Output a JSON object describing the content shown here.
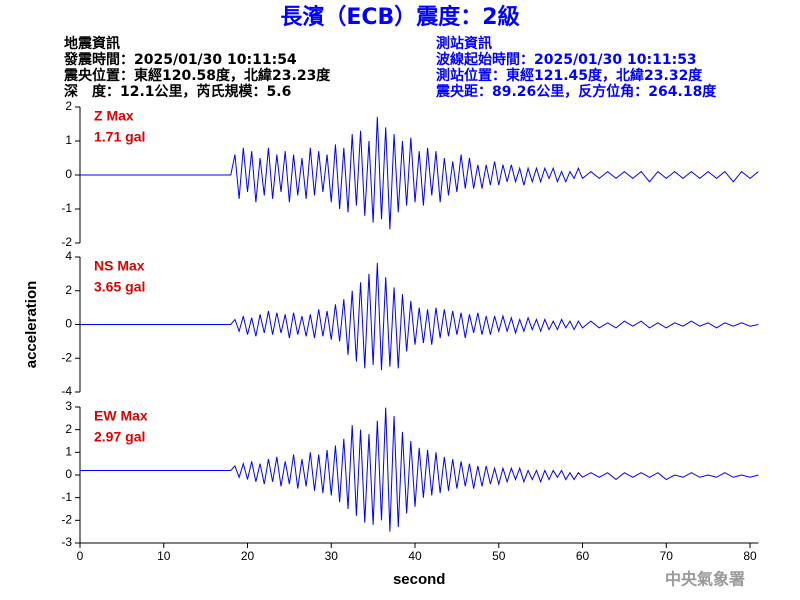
{
  "header": {
    "title": "長濱（ECB）震度：2級",
    "left": [
      "地震資訊",
      "發震時間：2025/01/30 10:11:54",
      "震央位置：東經120.58度，北緯23.23度",
      "深　度：12.1公里，芮氏規模：5.6"
    ],
    "right": [
      "測站資訊",
      "波線起始時間：2025/01/30 10:11:53",
      "測站位置：東經121.45度，北緯23.32度",
      "震央距：89.26公里，反方位角：264.18度"
    ]
  },
  "footer": "中央氣象署",
  "chart_data": [
    {
      "type": "line",
      "title": "Z Max",
      "subtitle": "1.71 gal",
      "color": "#0000ff",
      "xlim": [
        0,
        81
      ],
      "ylim": [
        -2,
        2
      ],
      "yticks": [
        -2,
        -1,
        0,
        1,
        2
      ],
      "x": [
        0,
        18,
        18.5,
        19,
        19.5,
        20,
        20.5,
        21,
        21.5,
        22,
        22.5,
        23,
        23.5,
        24,
        24.5,
        25,
        25.5,
        26,
        26.5,
        27,
        27.5,
        28,
        28.5,
        29,
        29.5,
        30,
        30.5,
        31,
        31.5,
        32,
        32.5,
        33,
        33.5,
        34,
        34.5,
        35,
        35.5,
        36,
        36.5,
        37,
        37.5,
        38,
        38.5,
        39,
        39.5,
        40,
        40.5,
        41,
        41.5,
        42,
        42.5,
        43,
        43.5,
        44,
        44.5,
        45,
        45.5,
        46,
        46.5,
        47,
        47.5,
        48,
        48.5,
        49,
        49.5,
        50,
        50.5,
        51,
        51.5,
        52,
        52.5,
        53,
        53.5,
        54,
        54.5,
        55,
        55.5,
        56,
        56.5,
        57,
        57.5,
        58,
        58.5,
        59,
        59.5,
        60,
        61,
        62,
        63,
        64,
        65,
        66,
        67,
        68,
        69,
        70,
        71,
        72,
        73,
        74,
        75,
        76,
        77,
        78,
        79,
        80,
        81
      ],
      "values": [
        0,
        0,
        0.6,
        -0.7,
        0.8,
        -0.5,
        0.7,
        -0.8,
        0.5,
        -0.6,
        0.8,
        -0.7,
        0.6,
        -0.5,
        0.7,
        -0.8,
        0.6,
        -0.6,
        0.5,
        -0.7,
        0.8,
        -0.6,
        0.7,
        -0.5,
        0.6,
        -0.8,
        0.9,
        -1.0,
        0.8,
        -1.1,
        1.2,
        -0.9,
        1.3,
        -1.2,
        1.0,
        -1.4,
        1.71,
        -1.3,
        1.4,
        -1.6,
        1.2,
        -1.1,
        1.0,
        -0.9,
        1.1,
        -0.8,
        0.7,
        -0.9,
        0.8,
        -0.6,
        0.7,
        -0.8,
        0.5,
        -0.6,
        0.4,
        -0.5,
        0.6,
        -0.4,
        0.5,
        -0.4,
        0.3,
        -0.4,
        0.3,
        -0.3,
        0.4,
        -0.3,
        0.3,
        -0.2,
        0.3,
        -0.2,
        0.2,
        -0.3,
        0.2,
        -0.2,
        0.2,
        -0.2,
        0.2,
        -0.1,
        0.2,
        -0.2,
        0.1,
        -0.2,
        0.1,
        -0.1,
        0.2,
        -0.1,
        0.1,
        -0.1,
        0.1,
        -0.1,
        0.1,
        -0.1,
        0.1,
        -0.2,
        0.1,
        -0.1,
        0.1,
        -0.1,
        0.1,
        -0.1,
        0.1,
        -0.1,
        0.1,
        -0.2,
        0.1,
        -0.1,
        0.1
      ]
    },
    {
      "type": "line",
      "title": "NS Max",
      "subtitle": "3.65 gal",
      "color": "#0000ff",
      "ylabel": "acceleration",
      "xlim": [
        0,
        81
      ],
      "ylim": [
        -4,
        4
      ],
      "yticks": [
        -4,
        -2,
        0,
        2,
        4
      ],
      "x": [
        0,
        18,
        18.5,
        19,
        19.5,
        20,
        20.5,
        21,
        21.5,
        22,
        22.5,
        23,
        23.5,
        24,
        24.5,
        25,
        25.5,
        26,
        26.5,
        27,
        27.5,
        28,
        28.5,
        29,
        29.5,
        30,
        30.5,
        31,
        31.5,
        32,
        32.5,
        33,
        33.5,
        34,
        34.5,
        35,
        35.5,
        36,
        36.5,
        37,
        37.5,
        38,
        38.5,
        39,
        39.5,
        40,
        40.5,
        41,
        41.5,
        42,
        42.5,
        43,
        43.5,
        44,
        44.5,
        45,
        45.5,
        46,
        46.5,
        47,
        47.5,
        48,
        48.5,
        49,
        49.5,
        50,
        50.5,
        51,
        51.5,
        52,
        52.5,
        53,
        53.5,
        54,
        54.5,
        55,
        55.5,
        56,
        56.5,
        57,
        57.5,
        58,
        58.5,
        59,
        59.5,
        60,
        61,
        62,
        63,
        64,
        65,
        66,
        67,
        68,
        69,
        70,
        71,
        72,
        73,
        74,
        75,
        76,
        77,
        78,
        79,
        80,
        81
      ],
      "values": [
        0,
        0,
        0.3,
        -0.4,
        0.5,
        -0.6,
        0.4,
        -0.7,
        0.6,
        -0.5,
        0.8,
        -0.6,
        0.7,
        -0.5,
        0.6,
        -0.8,
        0.7,
        -0.6,
        0.5,
        -0.7,
        0.6,
        -0.8,
        0.9,
        -0.7,
        0.8,
        -0.9,
        1.2,
        -1.0,
        1.5,
        -1.8,
        2.0,
        -2.2,
        2.5,
        -2.6,
        3.0,
        -2.4,
        3.65,
        -2.7,
        2.8,
        -2.5,
        2.2,
        -2.6,
        1.8,
        -1.6,
        1.4,
        -1.2,
        1.0,
        -1.1,
        0.9,
        -1.2,
        1.0,
        -0.8,
        0.9,
        -0.7,
        0.8,
        -0.6,
        0.7,
        -0.8,
        0.6,
        -0.5,
        0.7,
        -0.6,
        0.5,
        -0.6,
        0.5,
        -0.4,
        0.5,
        -0.4,
        0.4,
        -0.5,
        0.3,
        -0.4,
        0.4,
        -0.3,
        0.3,
        -0.4,
        0.3,
        -0.3,
        0.2,
        -0.3,
        0.3,
        -0.2,
        0.2,
        -0.3,
        0.2,
        -0.2,
        0.2,
        -0.2,
        0.1,
        -0.2,
        0.2,
        -0.1,
        0.2,
        -0.2,
        0.1,
        -0.2,
        0.1,
        -0.1,
        0.2,
        -0.1,
        0.1,
        -0.2,
        0.1,
        -0.1,
        0.1,
        -0.1,
        0.0
      ]
    },
    {
      "type": "line",
      "title": "EW Max",
      "subtitle": "2.97 gal",
      "color": "#0000ff",
      "xlabel": "second",
      "xlim": [
        0,
        81
      ],
      "ylim": [
        -3,
        3
      ],
      "yticks": [
        -3,
        -2,
        -1,
        0,
        1,
        2,
        3
      ],
      "xticks": [
        0,
        10,
        20,
        30,
        40,
        50,
        60,
        70,
        80
      ],
      "x": [
        0,
        18,
        18.5,
        19,
        19.5,
        20,
        20.5,
        21,
        21.5,
        22,
        22.5,
        23,
        23.5,
        24,
        24.5,
        25,
        25.5,
        26,
        26.5,
        27,
        27.5,
        28,
        28.5,
        29,
        29.5,
        30,
        30.5,
        31,
        31.5,
        32,
        32.5,
        33,
        33.5,
        34,
        34.5,
        35,
        35.5,
        36,
        36.5,
        37,
        37.5,
        38,
        38.5,
        39,
        39.5,
        40,
        40.5,
        41,
        41.5,
        42,
        42.5,
        43,
        43.5,
        44,
        44.5,
        45,
        45.5,
        46,
        46.5,
        47,
        47.5,
        48,
        48.5,
        49,
        49.5,
        50,
        50.5,
        51,
        51.5,
        52,
        52.5,
        53,
        53.5,
        54,
        54.5,
        55,
        55.5,
        56,
        56.5,
        57,
        57.5,
        58,
        58.5,
        59,
        59.5,
        60,
        61,
        62,
        63,
        64,
        65,
        66,
        67,
        68,
        69,
        70,
        71,
        72,
        73,
        74,
        75,
        76,
        77,
        78,
        79,
        80,
        81
      ],
      "values": [
        0.2,
        0.2,
        0.4,
        -0.1,
        0.5,
        -0.2,
        0.6,
        -0.3,
        0.5,
        -0.4,
        0.7,
        -0.3,
        0.8,
        -0.5,
        0.6,
        -0.4,
        0.9,
        -0.6,
        0.7,
        -0.5,
        1.0,
        -0.7,
        0.9,
        -0.8,
        1.1,
        -0.9,
        1.3,
        -1.2,
        1.6,
        -1.5,
        2.2,
        -1.8,
        2.0,
        -2.1,
        1.8,
        -2.2,
        2.4,
        -2.0,
        2.97,
        -2.5,
        2.6,
        -2.3,
        1.9,
        -1.7,
        1.5,
        -1.4,
        1.2,
        -1.0,
        1.1,
        -0.9,
        1.0,
        -0.8,
        0.8,
        -0.7,
        0.7,
        -0.6,
        0.6,
        -0.5,
        0.5,
        -0.6,
        0.4,
        -0.5,
        0.4,
        -0.4,
        0.3,
        -0.4,
        0.3,
        -0.3,
        0.3,
        -0.2,
        0.3,
        -0.3,
        0.2,
        -0.2,
        0.2,
        -0.3,
        0.2,
        -0.2,
        0.2,
        -0.1,
        0.2,
        -0.2,
        0.1,
        -0.2,
        0.1,
        -0.1,
        0.1,
        -0.1,
        0.1,
        -0.2,
        0.1,
        -0.1,
        0.1,
        -0.1,
        0.1,
        -0.2,
        0.0,
        -0.1,
        0.1,
        -0.1,
        0.0,
        -0.1,
        0.1,
        -0.1,
        0.0,
        -0.1,
        0.0
      ]
    }
  ]
}
